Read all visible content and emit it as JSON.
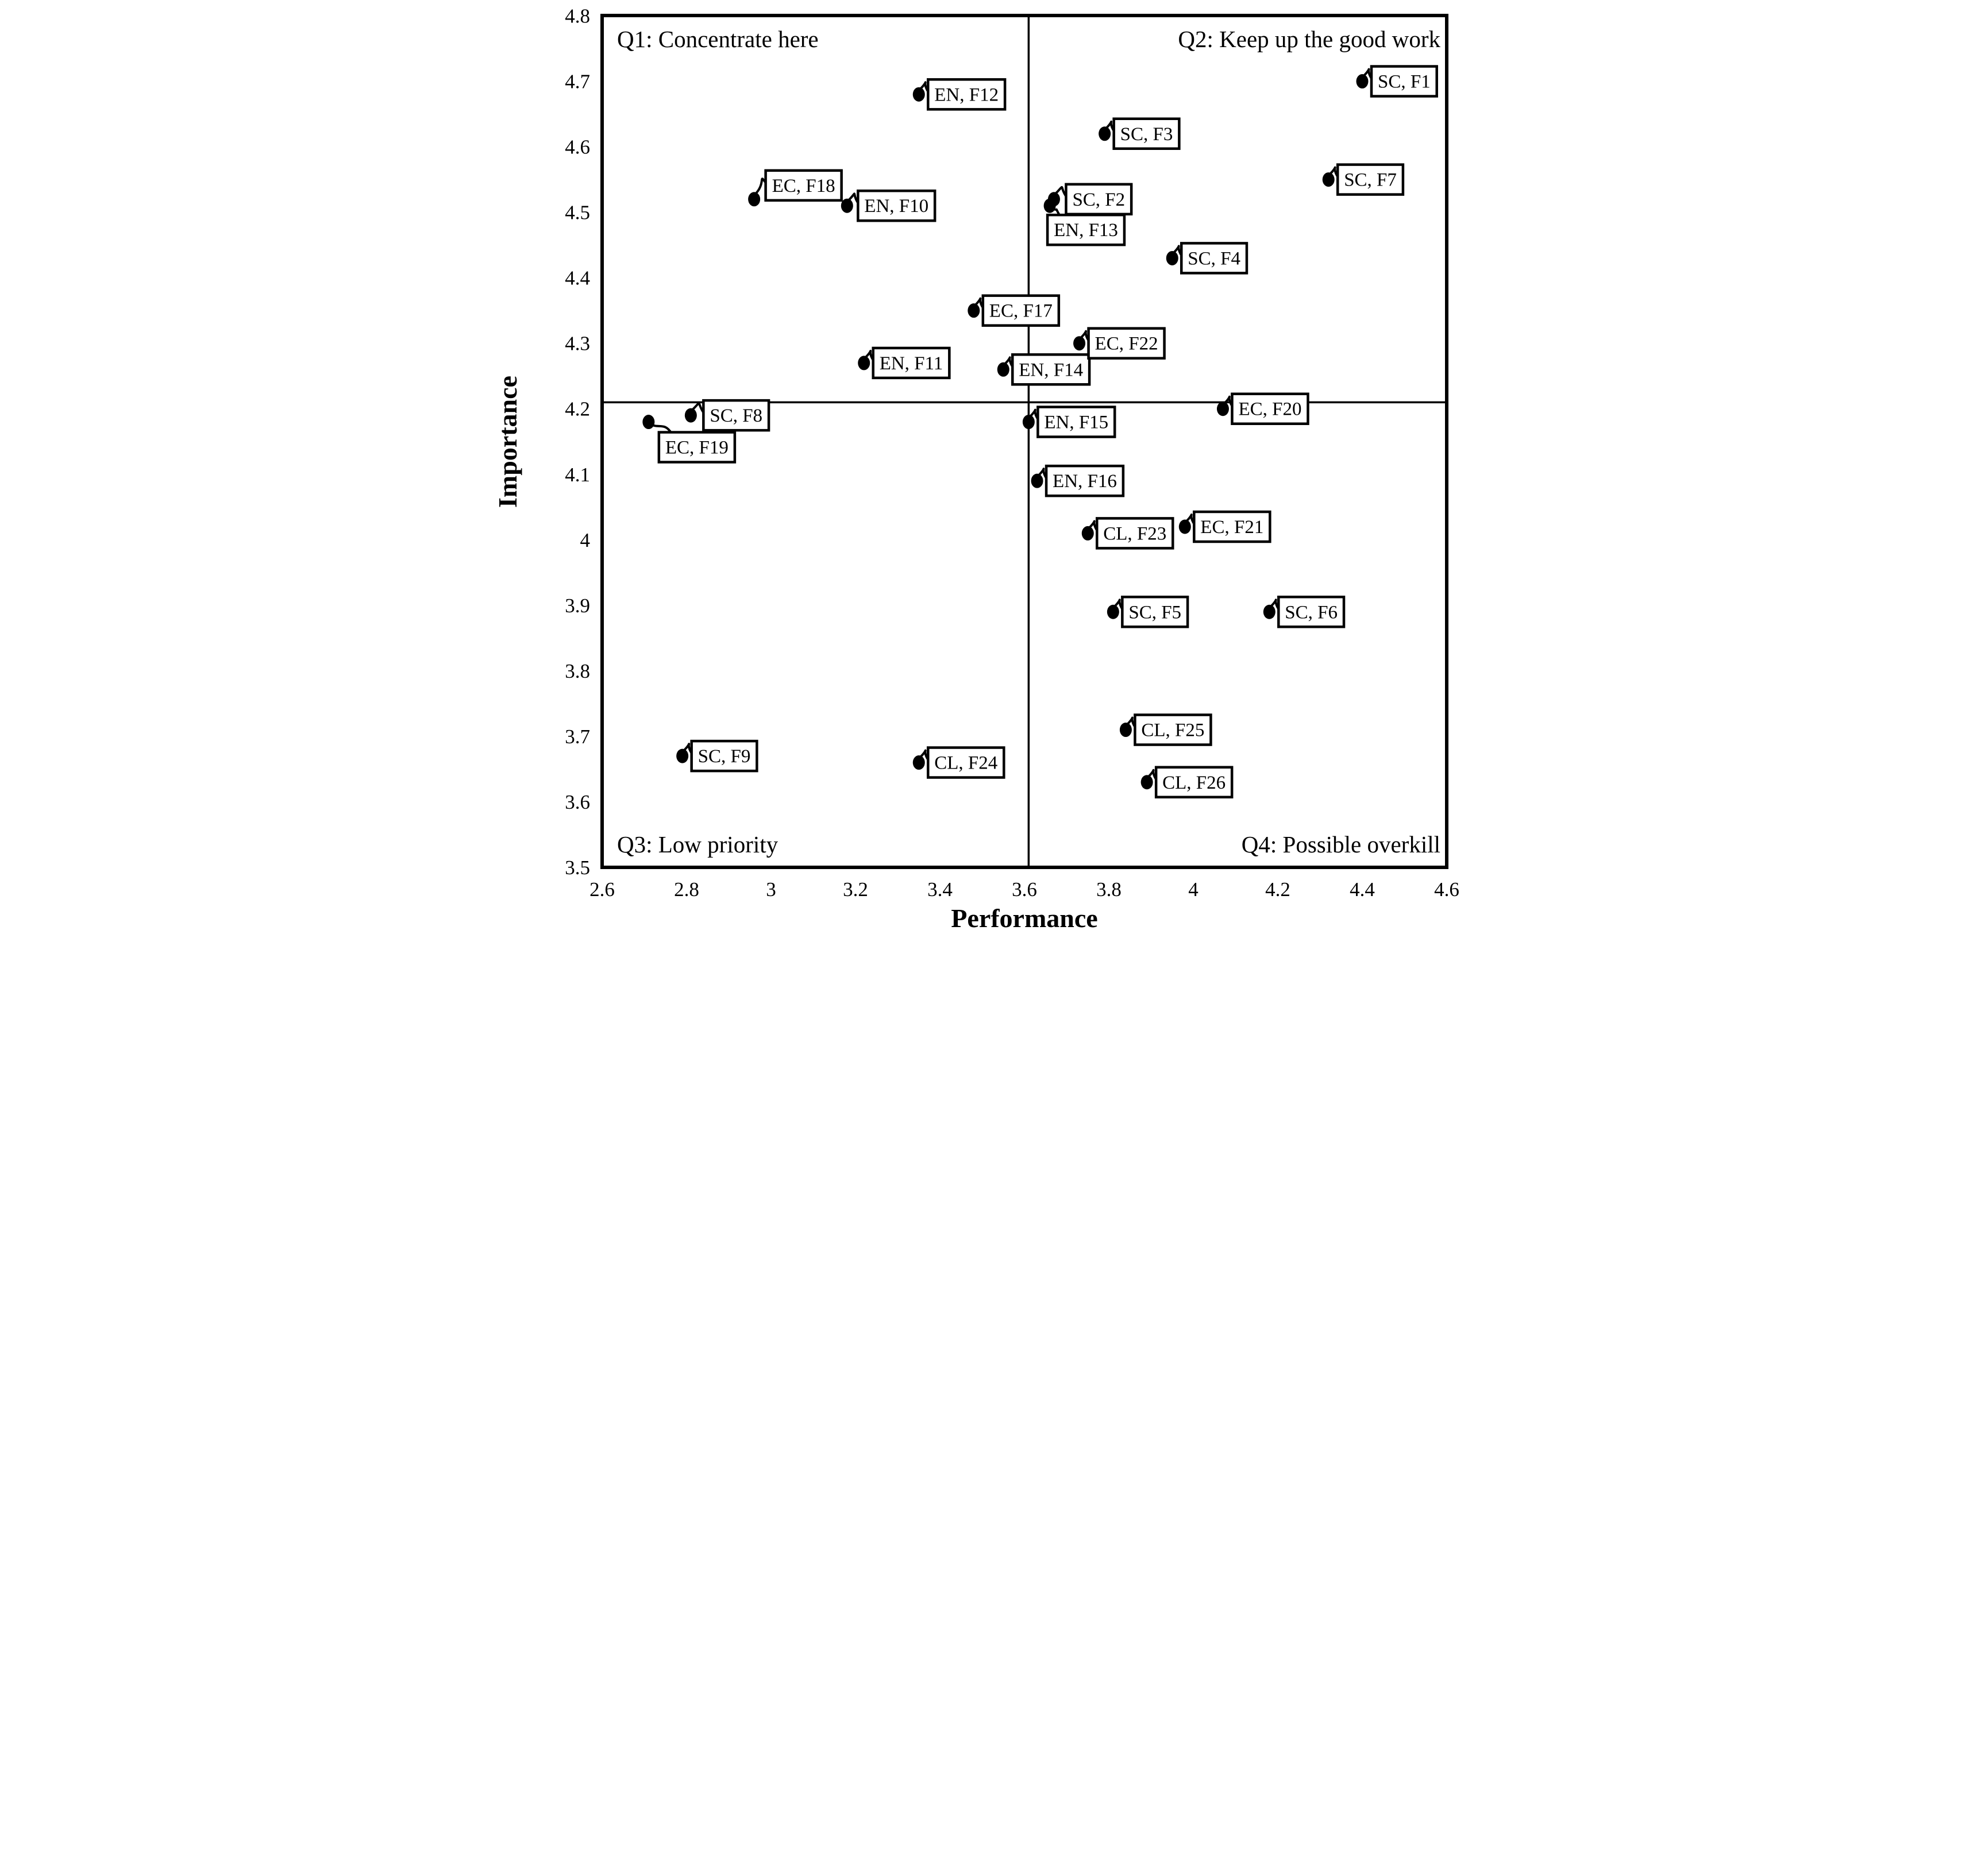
{
  "chart_data": {
    "type": "scatter",
    "title": "",
    "xlabel": "Performance",
    "ylabel": "Importance",
    "xlim": [
      2.6,
      4.6
    ],
    "ylim": [
      3.5,
      4.8
    ],
    "grid": false,
    "legend": false,
    "x_ticks": [
      {
        "v": 2.6,
        "label": "2.6"
      },
      {
        "v": 2.8,
        "label": "2.8"
      },
      {
        "v": 3.0,
        "label": "3"
      },
      {
        "v": 3.2,
        "label": "3.2"
      },
      {
        "v": 3.4,
        "label": "3.4"
      },
      {
        "v": 3.6,
        "label": "3.6"
      },
      {
        "v": 3.8,
        "label": "3.8"
      },
      {
        "v": 4.0,
        "label": "4"
      },
      {
        "v": 4.2,
        "label": "4.2"
      },
      {
        "v": 4.4,
        "label": "4.4"
      },
      {
        "v": 4.6,
        "label": "4.6"
      }
    ],
    "y_ticks": [
      {
        "v": 4.8,
        "label": "4.8"
      },
      {
        "v": 4.7,
        "label": "4.7"
      },
      {
        "v": 4.6,
        "label": "4.6"
      },
      {
        "v": 4.5,
        "label": "4.5"
      },
      {
        "v": 4.4,
        "label": "4.4"
      },
      {
        "v": 4.3,
        "label": "4.3"
      },
      {
        "v": 4.2,
        "label": "4.2"
      },
      {
        "v": 4.1,
        "label": "4.1"
      },
      {
        "v": 4.0,
        "label": "4"
      },
      {
        "v": 3.9,
        "label": "3.9"
      },
      {
        "v": 3.8,
        "label": "3.8"
      },
      {
        "v": 3.7,
        "label": "3.7"
      },
      {
        "v": 3.6,
        "label": "3.6"
      },
      {
        "v": 3.5,
        "label": "3.5"
      }
    ],
    "crosshair": {
      "x": 3.61,
      "y": 4.21
    },
    "quadrant_labels": [
      {
        "id": "q1",
        "text": "Q1: Concentrate here",
        "position": "top-left"
      },
      {
        "id": "q2",
        "text": "Q2: Keep up the good work",
        "position": "top-right"
      },
      {
        "id": "q3",
        "text": "Q3: Low priority",
        "position": "bottom-left"
      },
      {
        "id": "q4",
        "text": "Q4: Possible overkill",
        "position": "bottom-right"
      }
    ],
    "points": [
      {
        "label": "SC, F1",
        "x": 4.4,
        "y": 4.7
      },
      {
        "label": "SC, F2",
        "x": 3.67,
        "y": 4.52,
        "lx": 21
      },
      {
        "label": "SC, F3",
        "x": 3.79,
        "y": 4.62
      },
      {
        "label": "SC, F4",
        "x": 3.95,
        "y": 4.43
      },
      {
        "label": "SC, F5",
        "x": 3.81,
        "y": 3.89
      },
      {
        "label": "SC, F6",
        "x": 4.18,
        "y": 3.89
      },
      {
        "label": "SC, F7",
        "x": 4.32,
        "y": 4.55
      },
      {
        "label": "SC, F8",
        "x": 2.81,
        "y": 4.19,
        "lx": 22
      },
      {
        "label": "SC, F9",
        "x": 2.79,
        "y": 3.67
      },
      {
        "label": "EN, F10",
        "x": 3.18,
        "y": 4.51,
        "lx": 19
      },
      {
        "label": "EN, F11",
        "x": 3.22,
        "y": 4.27
      },
      {
        "label": "EN, F12",
        "x": 3.35,
        "y": 4.68
      },
      {
        "label": "EN, F13",
        "x": 3.66,
        "y": 4.51,
        "anchor": "top",
        "lx": -4,
        "ly": 16
      },
      {
        "label": "EN, F14",
        "x": 3.55,
        "y": 4.26
      },
      {
        "label": "EN, F15",
        "x": 3.61,
        "y": 4.18
      },
      {
        "label": "EN, F16",
        "x": 3.63,
        "y": 4.09
      },
      {
        "label": "EC, F17",
        "x": 3.48,
        "y": 4.35
      },
      {
        "label": "EC, F18",
        "x": 2.96,
        "y": 4.52,
        "lx": 20,
        "ly": -24
      },
      {
        "label": "EC, F19",
        "x": 2.71,
        "y": 4.18,
        "anchor": "top",
        "lx": 18,
        "ly": 18
      },
      {
        "label": "EC, F20",
        "x": 4.07,
        "y": 4.2
      },
      {
        "label": "EC, F21",
        "x": 3.98,
        "y": 4.02
      },
      {
        "label": "EC, F22",
        "x": 3.73,
        "y": 4.3
      },
      {
        "label": "CL, F23",
        "x": 3.75,
        "y": 4.01
      },
      {
        "label": "CL, F24",
        "x": 3.35,
        "y": 3.66
      },
      {
        "label": "CL, F25",
        "x": 3.84,
        "y": 3.71
      },
      {
        "label": "CL, F26",
        "x": 3.89,
        "y": 3.63
      }
    ]
  },
  "colors": {
    "ink": "#000000",
    "background": "#ffffff"
  }
}
